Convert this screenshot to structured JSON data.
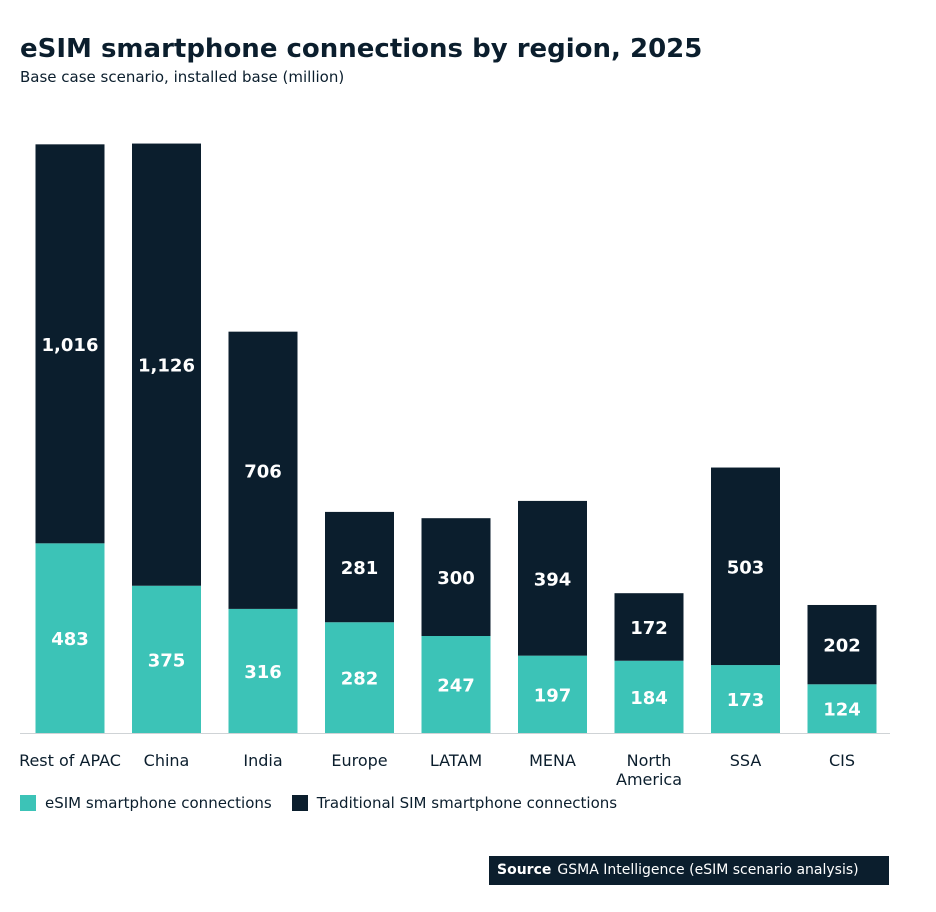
{
  "header": {
    "title": "eSIM smartphone connections by region, 2025",
    "subtitle": "Base case scenario, installed base (million)"
  },
  "colors": {
    "esim": "#3cc3b7",
    "traditional": "#0b1e2d",
    "text": "#0b1e2d"
  },
  "legend": {
    "esim": "eSIM smartphone connections",
    "traditional": "Traditional SIM smartphone connections"
  },
  "source": {
    "label": "Source",
    "text": "GSMA Intelligence (eSIM scenario analysis)"
  },
  "chart_data": {
    "type": "bar",
    "stacked": true,
    "title": "eSIM smartphone connections by region, 2025",
    "subtitle": "Base case scenario, installed base (million)",
    "categories": [
      "Rest of APAC",
      "China",
      "India",
      "Europe",
      "LATAM",
      "MENA",
      "North America",
      "SSA",
      "CIS"
    ],
    "series": [
      {
        "name": "eSIM smartphone connections",
        "values": [
          483,
          375,
          316,
          282,
          247,
          197,
          184,
          173,
          124
        ],
        "labels": [
          "483",
          "375",
          "316",
          "282",
          "247",
          "197",
          "184",
          "173",
          "124"
        ]
      },
      {
        "name": "Traditional SIM smartphone connections",
        "values": [
          1016,
          1126,
          706,
          281,
          300,
          394,
          172,
          503,
          202
        ],
        "labels": [
          "1,016",
          "1,126",
          "706",
          "281",
          "300",
          "394",
          "172",
          "503",
          "202"
        ]
      }
    ],
    "legend_position": "bottom-left",
    "grid": false
  }
}
